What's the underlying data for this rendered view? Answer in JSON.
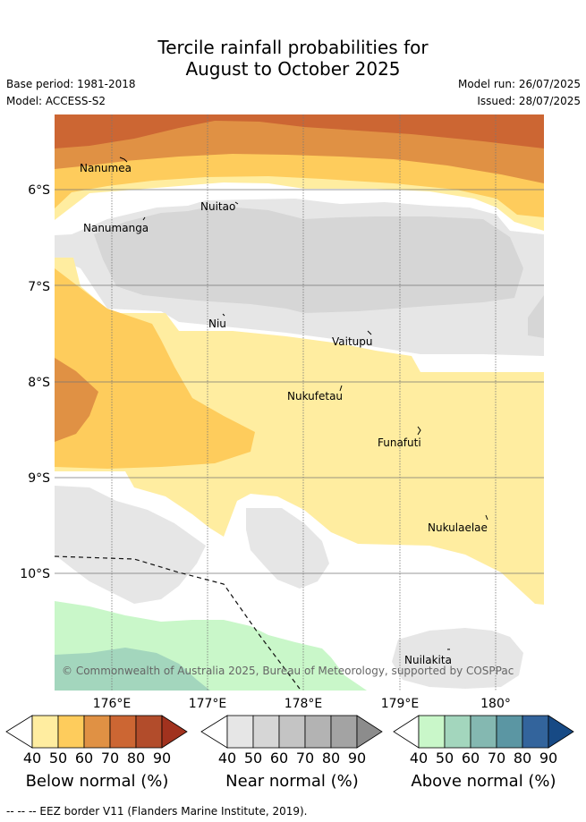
{
  "title": {
    "line1": "Tercile rainfall probabilities for",
    "line2": "August to October 2025"
  },
  "meta": {
    "base_period": "Base period: 1981-2018",
    "model": "Model: ACCESS-S2",
    "model_run": "Model run: 26/07/2025",
    "issued": "Issued: 28/07/2025"
  },
  "map": {
    "lat_labels": [
      "6°S",
      "7°S",
      "8°S",
      "9°S",
      "10°S"
    ],
    "lon_labels": [
      "176°E",
      "177°E",
      "178°E",
      "179°E",
      "180°"
    ],
    "places": [
      {
        "name": "Nanumea"
      },
      {
        "name": "Nuitao"
      },
      {
        "name": "Nanumanga"
      },
      {
        "name": "Niu"
      },
      {
        "name": "Vaitupu"
      },
      {
        "name": "Nukufetau"
      },
      {
        "name": "Funafuti"
      },
      {
        "name": "Nukulaelae"
      },
      {
        "name": "Nuilakita"
      }
    ],
    "credit": "© Commonwealth of Australia 2025, Bureau of Meteorology, supported by COSPPac"
  },
  "colorbars": [
    {
      "title": "Below normal (%)",
      "ticks": [
        "40",
        "50",
        "60",
        "70",
        "80",
        "90"
      ],
      "colors": [
        "#ffeda0",
        "#fecc5c",
        "#e09144",
        "#cc6633",
        "#b24c2b",
        "#a1321e"
      ]
    },
    {
      "title": "Near normal (%)",
      "ticks": [
        "40",
        "50",
        "60",
        "70",
        "80",
        "90"
      ],
      "colors": [
        "#e6e6e6",
        "#d6d6d6",
        "#c4c4c4",
        "#b3b3b3",
        "#a3a3a3",
        "#8c8c8c"
      ]
    },
    {
      "title": "Above normal (%)",
      "ticks": [
        "40",
        "50",
        "60",
        "70",
        "80",
        "90"
      ],
      "colors": [
        "#c9f7c9",
        "#a3d6bd",
        "#84b8b1",
        "#5b96a3",
        "#33649c",
        "#174a85"
      ]
    }
  ],
  "legend_footer": "-- -- -- EEZ border V11 (Flanders Marine Institute, 2019)."
}
